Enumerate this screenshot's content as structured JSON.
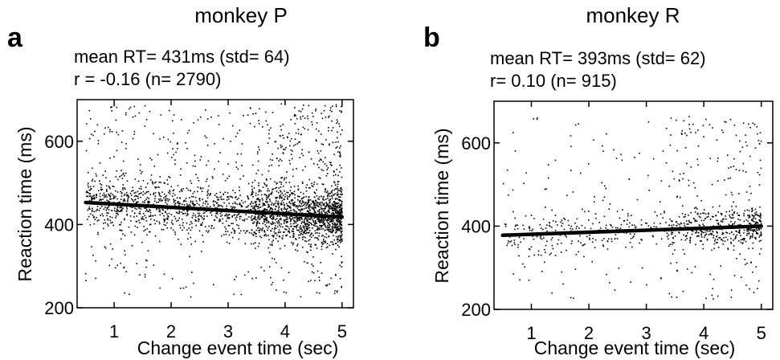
{
  "chart_data": [
    {
      "type": "scatter",
      "panel_label": "a",
      "title": "monkey P",
      "annotations": [
        "mean RT= 431ms (std= 64)",
        "r = -0.16 (n= 2790)"
      ],
      "xlabel": "Change event time (sec)",
      "ylabel": "Reaction time  (ms)",
      "xlim": [
        0.35,
        5.2
      ],
      "ylim": [
        200,
        700
      ],
      "xticks": [
        1,
        2,
        3,
        4,
        5
      ],
      "yticks": [
        200,
        400,
        600
      ],
      "grid": false,
      "marker_color": "#000000",
      "n_points": 2790,
      "point_distribution": {
        "x_range": [
          0.5,
          5.0
        ],
        "mean": 431,
        "std": 64,
        "core_spread": 40,
        "y_min": 225,
        "y_max": 690
      },
      "regression_line": {
        "x": [
          0.5,
          5.0
        ],
        "y": [
          453,
          418
        ]
      }
    },
    {
      "type": "scatter",
      "panel_label": "b",
      "title": "monkey R",
      "annotations": [
        "mean RT= 393ms (std= 62)",
        "r= 0.10 (n= 915)"
      ],
      "xlabel": "Change event time (sec)",
      "ylabel": "Reaction time  (ms)",
      "xlim": [
        0.35,
        5.2
      ],
      "ylim": [
        200,
        700
      ],
      "xticks": [
        1,
        2,
        3,
        4,
        5
      ],
      "yticks": [
        200,
        400,
        600
      ],
      "grid": false,
      "marker_color": "#000000",
      "n_points": 915,
      "point_distribution": {
        "x_range": [
          0.5,
          5.0
        ],
        "mean": 393,
        "std": 62,
        "core_spread": 30,
        "y_min": 225,
        "y_max": 665
      },
      "regression_line": {
        "x": [
          0.5,
          5.0
        ],
        "y": [
          378,
          400
        ]
      }
    }
  ]
}
